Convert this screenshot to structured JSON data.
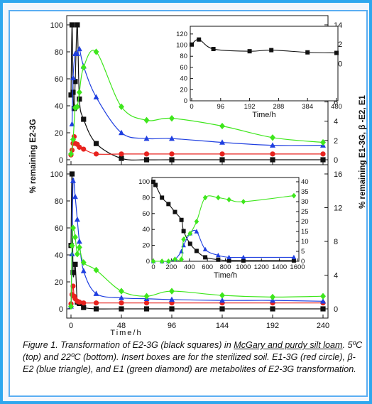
{
  "colors": {
    "E2-3G": "#111111",
    "E1-3G": "#e8231f",
    "beta-E2": "#1f3fe0",
    "E1": "#3ee61c",
    "frame": "#2fa7ee"
  },
  "caption": {
    "part1": "Figure 1.  Transformation of E2-3G (black squares) in ",
    "soil": "McGary and purdy silt loam",
    "part2": ". 5ºC (top) and 22ºC (bottom). Insert boxes are for the sterilized soil. E1-3G (red circle), β-E2 (blue triangle), and E1 (green diamond) are metabolites of E2-3G transformation."
  },
  "chart_data": [
    {
      "id": "top-main",
      "type": "scatter",
      "x_ticks": [
        0,
        48,
        96,
        144,
        192,
        240
      ],
      "xlim": [
        0,
        240
      ],
      "y_left_label": "% remaining E2-3G",
      "y_left_ticks": [
        0,
        20,
        40,
        60,
        80,
        100
      ],
      "ylim_left": [
        0,
        100
      ],
      "y_right_label": "% remaining E1-3G,  β -E2,  E1",
      "y_right_ticks": [
        0,
        2,
        4,
        6,
        8,
        10,
        12,
        14
      ],
      "ylim_right": [
        0,
        14
      ],
      "series": [
        {
          "key": "E2-3G",
          "axis": "left",
          "marker": "square",
          "x": [
            0,
            1,
            2,
            3,
            4,
            6,
            8,
            12,
            24,
            48,
            72,
            96,
            144,
            192,
            240
          ],
          "y": [
            48,
            100,
            50,
            38,
            58,
            100,
            45,
            30,
            12,
            1,
            0,
            0,
            0,
            0,
            0
          ]
        },
        {
          "key": "E1-3G",
          "axis": "right",
          "marker": "circle",
          "x": [
            0,
            1,
            2,
            3,
            4,
            6,
            8,
            12,
            24,
            48,
            72,
            96,
            144,
            192,
            240
          ],
          "y": [
            0.5,
            1,
            1.7,
            2.4,
            1.7,
            1.6,
            1.3,
            1.1,
            0.6,
            0.6,
            0.6,
            0.6,
            0.6,
            0.6,
            0.6
          ]
        },
        {
          "key": "beta-E2",
          "axis": "right",
          "marker": "triangle",
          "x": [
            1,
            2,
            4,
            6,
            8,
            12,
            24,
            48,
            72,
            96,
            144,
            192,
            240
          ],
          "y": [
            3.7,
            8.5,
            11,
            11,
            11.5,
            9.7,
            6.5,
            2.8,
            2.2,
            2.2,
            1.8,
            1.5,
            1.5
          ]
        },
        {
          "key": "E1",
          "axis": "right",
          "marker": "diamond",
          "x": [
            0,
            2,
            4,
            6,
            8,
            12,
            24,
            48,
            72,
            96,
            144,
            192,
            240
          ],
          "y": [
            0.6,
            2.1,
            5.4,
            5.5,
            7,
            9.6,
            11.2,
            5.5,
            4.1,
            4.3,
            3.5,
            2.3,
            1.8
          ]
        }
      ],
      "inset": {
        "series": "E2-3G",
        "x_label": "Time/h",
        "x_ticks": [
          0,
          96,
          192,
          288,
          384,
          480
        ],
        "xlim": [
          0,
          480
        ],
        "y_ticks": [
          0,
          20,
          40,
          60,
          80,
          100,
          120
        ],
        "ylim": [
          0,
          130
        ],
        "x": [
          0,
          24,
          72,
          192,
          264,
          384,
          480
        ],
        "y": [
          101,
          110,
          93,
          89,
          91,
          87,
          86
        ]
      }
    },
    {
      "id": "bottom-main",
      "type": "scatter",
      "x_label": "Time/h",
      "x_ticks": [
        0,
        48,
        96,
        144,
        192,
        240
      ],
      "xlim": [
        0,
        240
      ],
      "y_left_ticks": [
        0,
        20,
        40,
        60,
        80,
        100
      ],
      "ylim_left": [
        0,
        100
      ],
      "y_right_ticks": [
        0,
        4,
        8,
        12,
        16
      ],
      "ylim_right": [
        0,
        16
      ],
      "series": [
        {
          "key": "E2-3G",
          "axis": "left",
          "marker": "square",
          "x": [
            0,
            1,
            2,
            4,
            6,
            8,
            12,
            24,
            48,
            72,
            96,
            144,
            192,
            240
          ],
          "y": [
            47,
            100,
            27,
            33,
            5,
            4,
            1,
            0,
            0,
            0,
            0,
            0,
            0,
            0
          ]
        },
        {
          "key": "E1-3G",
          "axis": "right",
          "marker": "circle",
          "x": [
            0,
            1,
            2,
            3,
            4,
            6,
            8,
            12,
            24,
            48,
            72,
            96,
            144,
            192,
            240
          ],
          "y": [
            0.6,
            1.7,
            2.7,
            1.5,
            1.2,
            0.9,
            0.8,
            0.7,
            0.7,
            0.7,
            0.7,
            0.7,
            0.7,
            0.7,
            0.7
          ]
        },
        {
          "key": "beta-E2",
          "axis": "right",
          "marker": "triangle",
          "x": [
            0,
            1,
            2,
            4,
            6,
            8,
            12,
            24,
            48,
            72,
            96,
            144,
            192,
            240
          ],
          "y": [
            0.3,
            6.5,
            15.2,
            13.3,
            10.6,
            8,
            4.5,
            1.8,
            1.3,
            1.2,
            1.1,
            1,
            1,
            0.9
          ]
        },
        {
          "key": "E1",
          "axis": "right",
          "marker": "diamond",
          "x": [
            0,
            1,
            2,
            4,
            6,
            8,
            12,
            24,
            48,
            72,
            96,
            144,
            192,
            240
          ],
          "y": [
            0.3,
            7.5,
            9.6,
            8.5,
            6.5,
            7.3,
            5.5,
            4.6,
            2.1,
            1.5,
            2.1,
            1.6,
            1.4,
            1.5
          ]
        }
      ],
      "inset": {
        "x_label": "Time/h",
        "x_ticks": [
          0,
          200,
          400,
          600,
          800,
          1000,
          1200,
          1400,
          1600
        ],
        "xlim": [
          0,
          1600
        ],
        "y_left_ticks": [
          0,
          20,
          40,
          60,
          80,
          100
        ],
        "ylim_left": [
          0,
          100
        ],
        "y_right_ticks": [
          0,
          5,
          10,
          15,
          20,
          25,
          30,
          35,
          40
        ],
        "ylim_right": [
          0,
          40
        ],
        "series": [
          {
            "key": "E2-3G",
            "axis": "left",
            "marker": "square",
            "x": [
              0,
              24,
              96,
              168,
              240,
              312,
              336,
              408,
              480,
              576,
              720,
              840,
              1000,
              1560
            ],
            "y": [
              100,
              96,
              80,
              72,
              62,
              52,
              38,
              22,
              13,
              5,
              2,
              1,
              1,
              1
            ]
          },
          {
            "key": "beta-E2",
            "axis": "right",
            "marker": "triangle",
            "x": [
              0,
              96,
              168,
              240,
              312,
              336,
              408,
              480,
              576,
              720,
              840,
              1000,
              1560
            ],
            "y": [
              0,
              0,
              0,
              1,
              5,
              8,
              14,
              15,
              6,
              3,
              2,
              2,
              2
            ]
          },
          {
            "key": "E1",
            "axis": "right",
            "marker": "diamond",
            "x": [
              0,
              96,
              168,
              240,
              312,
              336,
              408,
              480,
              576,
              720,
              840,
              1000,
              1560
            ],
            "y": [
              0,
              0,
              0,
              1,
              1,
              11,
              14,
              20,
              32,
              32,
              31,
              30,
              33
            ]
          }
        ]
      }
    }
  ]
}
